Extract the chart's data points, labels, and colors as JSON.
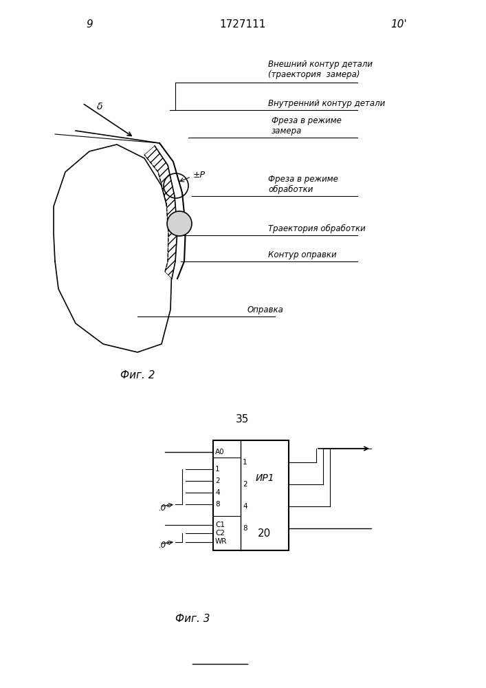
{
  "page_number_left": "9",
  "page_number_center": "1727111",
  "page_number_right": "10'",
  "fig2_caption": "Фиг. 2",
  "fig3_caption": "Фиг. 3",
  "separator_number": "35",
  "bg_color": "#ffffff",
  "line_color": "#000000",
  "hatch_color": "#000000",
  "labels": {
    "outer_contour": "Внешний контур детали\n(траектория  замера)",
    "inner_contour": "Внутренний контур детали",
    "mill_measure": "Фреза в режиме\nзамера",
    "pm": "±Р",
    "mill_process": "Фреза в режиме\nобработки",
    "trajectory": "Траектория обработки",
    "contour_opr": "Контур оправки",
    "opr": "Оправка"
  },
  "block_label": "ИР1",
  "block_number": "20",
  "block_inputs_left": [
    "А0",
    "1",
    "2",
    "4",
    "8",
    "С1",
    "С2",
    "WR"
  ],
  "block_outputs_right": [
    "1",
    "2",
    "4",
    "8"
  ]
}
